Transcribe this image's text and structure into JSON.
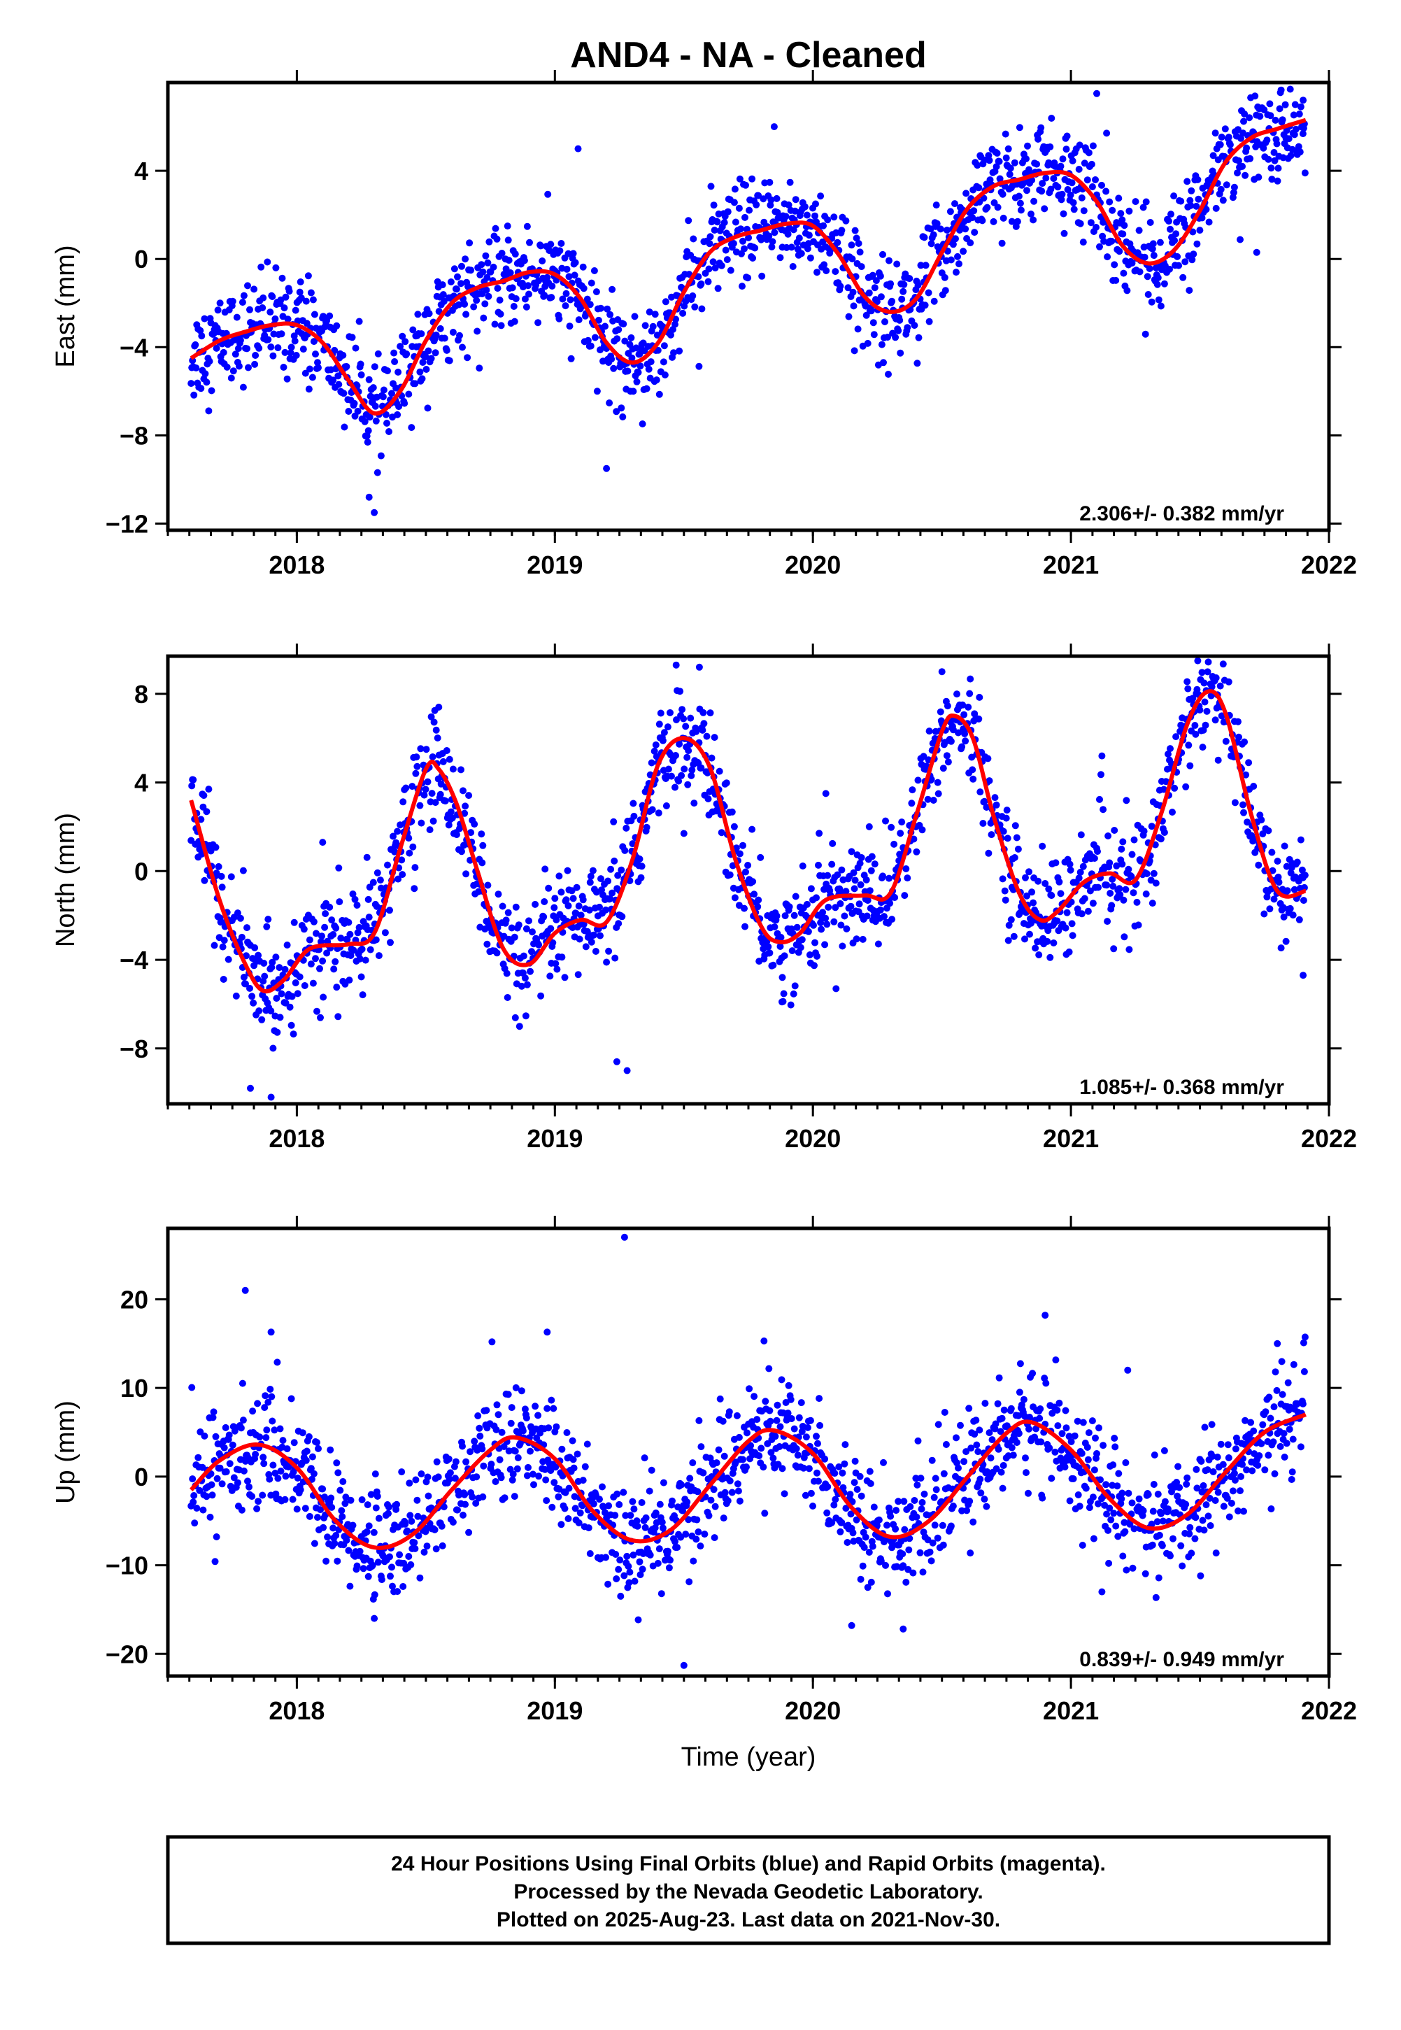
{
  "chart_data": {
    "type": "scatter",
    "title": "AND4  - NA - Cleaned",
    "xlabel": "Time (year)",
    "x_range": [
      2017.5,
      2022.0
    ],
    "x_ticks": [
      2018,
      2019,
      2020,
      2021,
      2022
    ],
    "x_tick_labels": [
      "2018",
      "2019",
      "2020",
      "2021",
      "2022"
    ],
    "data_span": [
      2017.59,
      2021.91
    ],
    "colors": {
      "points": "#0000ff",
      "fit": "#ff0000",
      "frame": "#000000"
    },
    "panels": [
      {
        "id": "east",
        "ylabel": "East (mm)",
        "ylim": [
          -12.3,
          8.0
        ],
        "y_ticks": [
          -12,
          -8,
          -4,
          0,
          4
        ],
        "y_tick_labels": [
          "−12",
          "−8",
          "−4",
          "0",
          "4"
        ],
        "rate_label": "2.306+/- 0.382 mm/yr",
        "point_scatter_sd": 1.1,
        "fit_series": {
          "name": "",
          "x": [
            2017.59,
            2017.7,
            2017.8,
            2017.9,
            2018.0,
            2018.1,
            2018.2,
            2018.3,
            2018.4,
            2018.5,
            2018.6,
            2018.7,
            2018.8,
            2018.9,
            2019.0,
            2019.1,
            2019.2,
            2019.3,
            2019.4,
            2019.5,
            2019.6,
            2019.7,
            2019.8,
            2019.9,
            2020.0,
            2020.1,
            2020.2,
            2020.3,
            2020.4,
            2020.5,
            2020.6,
            2020.7,
            2020.8,
            2020.9,
            2021.0,
            2021.1,
            2021.2,
            2021.3,
            2021.4,
            2021.5,
            2021.6,
            2021.7,
            2021.8,
            2021.91
          ],
          "y": [
            -4.5,
            -3.7,
            -3.3,
            -3.0,
            -3.0,
            -3.8,
            -5.5,
            -7.0,
            -6.0,
            -3.7,
            -2.0,
            -1.3,
            -1.0,
            -0.6,
            -0.7,
            -1.8,
            -3.8,
            -4.7,
            -3.8,
            -1.5,
            0.3,
            1.0,
            1.3,
            1.6,
            1.5,
            0.2,
            -1.7,
            -2.4,
            -1.8,
            0.3,
            2.3,
            3.3,
            3.6,
            3.9,
            3.8,
            2.6,
            0.6,
            -0.2,
            0.4,
            2.2,
            4.4,
            5.5,
            5.9,
            6.3
          ]
        },
        "outliers": [
          {
            "x": 2018.3,
            "y": -11.5
          },
          {
            "x": 2018.28,
            "y": -10.8
          },
          {
            "x": 2019.09,
            "y": 5.0
          },
          {
            "x": 2019.2,
            "y": -9.5
          },
          {
            "x": 2019.85,
            "y": 6.0
          },
          {
            "x": 2021.1,
            "y": 7.5
          },
          {
            "x": 2021.9,
            "y": 7.2
          },
          {
            "x": 2021.72,
            "y": 0.3
          }
        ]
      },
      {
        "id": "north",
        "ylabel": "North (mm)",
        "ylim": [
          -10.5,
          9.7
        ],
        "y_ticks": [
          -8,
          -4,
          0,
          4,
          8
        ],
        "y_tick_labels": [
          "−8",
          "−4",
          "0",
          "4",
          "8"
        ],
        "rate_label": "1.085+/- 0.368 mm/yr",
        "point_scatter_sd": 1.2,
        "fit_series": {
          "name": "",
          "x": [
            2017.59,
            2017.7,
            2017.8,
            2017.87,
            2017.95,
            2018.05,
            2018.2,
            2018.3,
            2018.4,
            2018.5,
            2018.55,
            2018.62,
            2018.7,
            2018.8,
            2018.9,
            2019.0,
            2019.1,
            2019.2,
            2019.3,
            2019.4,
            2019.5,
            2019.6,
            2019.7,
            2019.8,
            2019.87,
            2019.95,
            2020.05,
            2020.2,
            2020.3,
            2020.4,
            2020.5,
            2020.55,
            2020.62,
            2020.7,
            2020.8,
            2020.88,
            2020.95,
            2021.05,
            2021.15,
            2021.25,
            2021.35,
            2021.45,
            2021.53,
            2021.6,
            2021.7,
            2021.8,
            2021.91
          ],
          "y": [
            3.2,
            -1.3,
            -4.2,
            -5.4,
            -4.9,
            -3.5,
            -3.3,
            -2.8,
            1.0,
            4.6,
            4.6,
            3.0,
            0.0,
            -3.5,
            -4.2,
            -2.8,
            -2.2,
            -2.3,
            0.5,
            4.8,
            6.0,
            4.7,
            0.5,
            -2.5,
            -3.2,
            -2.8,
            -1.3,
            -1.1,
            -1.0,
            2.5,
            6.3,
            7.0,
            6.0,
            2.5,
            -1.0,
            -2.2,
            -1.8,
            -0.5,
            -0.1,
            -0.4,
            2.6,
            6.6,
            8.1,
            7.1,
            2.5,
            -0.9,
            -0.9
          ]
        },
        "outliers": [
          {
            "x": 2017.82,
            "y": -9.8
          },
          {
            "x": 2017.9,
            "y": -10.2
          },
          {
            "x": 2018.1,
            "y": 1.3
          },
          {
            "x": 2018.55,
            "y": 7.4
          },
          {
            "x": 2019.24,
            "y": -8.6
          },
          {
            "x": 2019.28,
            "y": -9.0
          },
          {
            "x": 2019.47,
            "y": 9.3
          },
          {
            "x": 2019.5,
            "y": 1.7
          },
          {
            "x": 2019.56,
            "y": 9.2
          },
          {
            "x": 2019.88,
            "y": -5.9
          },
          {
            "x": 2020.05,
            "y": 3.5
          },
          {
            "x": 2020.5,
            "y": 9.0
          },
          {
            "x": 2021.12,
            "y": 5.2
          },
          {
            "x": 2021.9,
            "y": -4.7
          }
        ]
      },
      {
        "id": "up",
        "ylabel": "Up (mm)",
        "ylim": [
          -22.5,
          28.0
        ],
        "y_ticks": [
          -20,
          -10,
          0,
          10,
          20
        ],
        "y_tick_labels": [
          "−20",
          "−10",
          "0",
          "10",
          "20"
        ],
        "rate_label": "0.839+/- 0.949 mm/yr",
        "point_scatter_sd": 3.2,
        "fit_series": {
          "name": "",
          "x": [
            2017.59,
            2017.7,
            2017.85,
            2018.0,
            2018.15,
            2018.3,
            2018.45,
            2018.6,
            2018.75,
            2018.85,
            2019.0,
            2019.15,
            2019.3,
            2019.45,
            2019.6,
            2019.75,
            2019.85,
            2020.0,
            2020.15,
            2020.3,
            2020.45,
            2020.6,
            2020.75,
            2020.85,
            2021.0,
            2021.15,
            2021.3,
            2021.45,
            2021.6,
            2021.75,
            2021.91
          ],
          "y": [
            -1.5,
            1.8,
            3.6,
            1.0,
            -5.0,
            -8.0,
            -6.5,
            -1.5,
            3.0,
            4.4,
            2.0,
            -4.0,
            -7.2,
            -6.0,
            -1.0,
            4.0,
            5.2,
            2.6,
            -3.5,
            -6.8,
            -5.0,
            0.0,
            4.9,
            6.1,
            3.0,
            -2.5,
            -5.8,
            -4.3,
            0.5,
            5.0,
            7.0
          ]
        },
        "outliers": [
          {
            "x": 2017.8,
            "y": 21.0
          },
          {
            "x": 2017.9,
            "y": 16.3
          },
          {
            "x": 2018.3,
            "y": -16.0
          },
          {
            "x": 2018.97,
            "y": 16.3
          },
          {
            "x": 2019.27,
            "y": 27.0
          },
          {
            "x": 2019.5,
            "y": -21.3
          },
          {
            "x": 2020.15,
            "y": -16.8
          },
          {
            "x": 2020.35,
            "y": -17.2
          },
          {
            "x": 2020.9,
            "y": 18.2
          },
          {
            "x": 2021.22,
            "y": 12.0
          },
          {
            "x": 2021.8,
            "y": 15.0
          },
          {
            "x": 2021.12,
            "y": -13.0
          }
        ]
      }
    ]
  },
  "footer": {
    "line1": "24 Hour Positions Using Final Orbits (blue) and Rapid Orbits (magenta).",
    "line2": "Processed by the Nevada Geodetic Laboratory.",
    "line3": "Plotted on 2025-Aug-23. Last data on 2021-Nov-30."
  }
}
